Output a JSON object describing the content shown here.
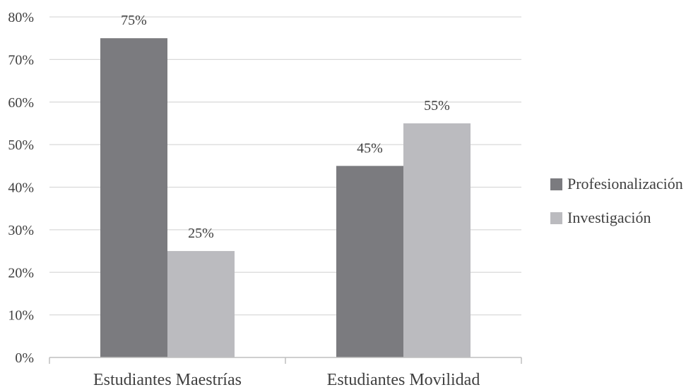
{
  "chart_data": {
    "type": "bar",
    "categories": [
      "Estudiantes Maestrías",
      "Estudiantes Movilidad"
    ],
    "series": [
      {
        "name": "Profesionalización",
        "values": [
          75,
          45
        ],
        "labels": [
          "75%",
          "45%"
        ],
        "color": "#7b7b7f"
      },
      {
        "name": "Investigación",
        "values": [
          25,
          55
        ],
        "labels": [
          "25%",
          "55%"
        ],
        "color": "#bbbbbf"
      }
    ],
    "ylim": [
      0,
      80
    ],
    "yticks": [
      0,
      10,
      20,
      30,
      40,
      50,
      60,
      70,
      80
    ],
    "ytick_labels": [
      "0%",
      "10%",
      "20%",
      "30%",
      "40%",
      "50%",
      "60%",
      "70%",
      "80%"
    ],
    "grid": true,
    "legend": "right",
    "title": "",
    "xlabel": "",
    "ylabel": ""
  }
}
